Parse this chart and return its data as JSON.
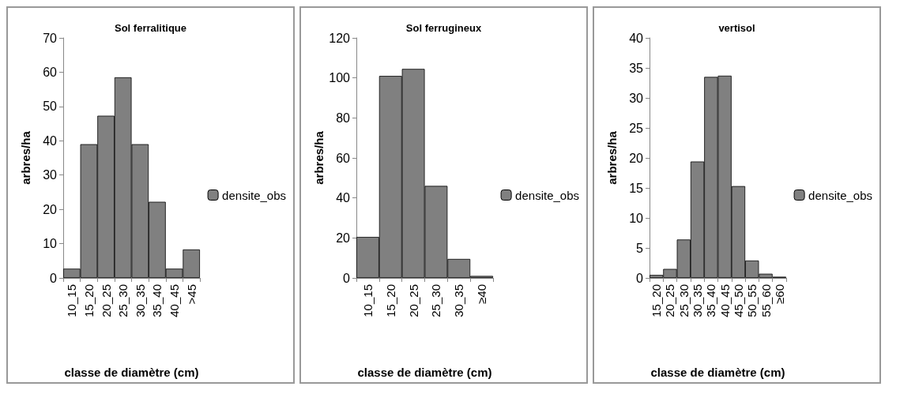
{
  "chart_data": [
    {
      "type": "bar",
      "title": "Sol ferralitique",
      "xlabel": "classe de diamètre (cm)",
      "ylabel": "arbres/ha",
      "categories": [
        "10_15",
        "15_20",
        "20_25",
        "25_30",
        "30_35",
        "35_40",
        "40_45",
        ">45"
      ],
      "series": [
        {
          "name": "densite_obs",
          "color": "#808080",
          "values": [
            2.7,
            39,
            47.3,
            58.5,
            39,
            22.2,
            2.7,
            8.3
          ]
        }
      ],
      "ylim": [
        0,
        70
      ],
      "yticks": [
        0,
        10,
        20,
        30,
        40,
        50,
        60,
        70
      ],
      "grid": false,
      "legend": "right"
    },
    {
      "type": "bar",
      "title": "Sol ferrugineux",
      "xlabel": "classe de diamètre (cm)",
      "ylabel": "arbres/ha",
      "categories": [
        "10_15",
        "15_20",
        "20_25",
        "25_30",
        "30_35",
        "≥40"
      ],
      "series": [
        {
          "name": "densite_obs",
          "color": "#808080",
          "values": [
            20.5,
            101,
            104.5,
            46,
            9.5,
            1
          ]
        }
      ],
      "ylim": [
        0,
        120
      ],
      "yticks": [
        0,
        20,
        40,
        60,
        80,
        100,
        120
      ],
      "grid": false,
      "legend": "right"
    },
    {
      "type": "bar",
      "title": "vertisol",
      "xlabel": "classe de diamètre (cm)",
      "ylabel": "arbres/ha",
      "categories": [
        "15_20",
        "20_25",
        "25_30",
        "30_35",
        "35_40",
        "40_45",
        "45_50",
        "50_55",
        "55_60",
        "≥60"
      ],
      "series": [
        {
          "name": "densite_obs",
          "color": "#808080",
          "values": [
            0.5,
            1.5,
            6.4,
            19.4,
            33.5,
            33.7,
            15.3,
            2.9,
            0.7,
            0.2
          ]
        }
      ],
      "ylim": [
        0,
        40
      ],
      "yticks": [
        0,
        5,
        10,
        15,
        20,
        25,
        30,
        35,
        40
      ],
      "grid": false,
      "legend": "right"
    }
  ]
}
